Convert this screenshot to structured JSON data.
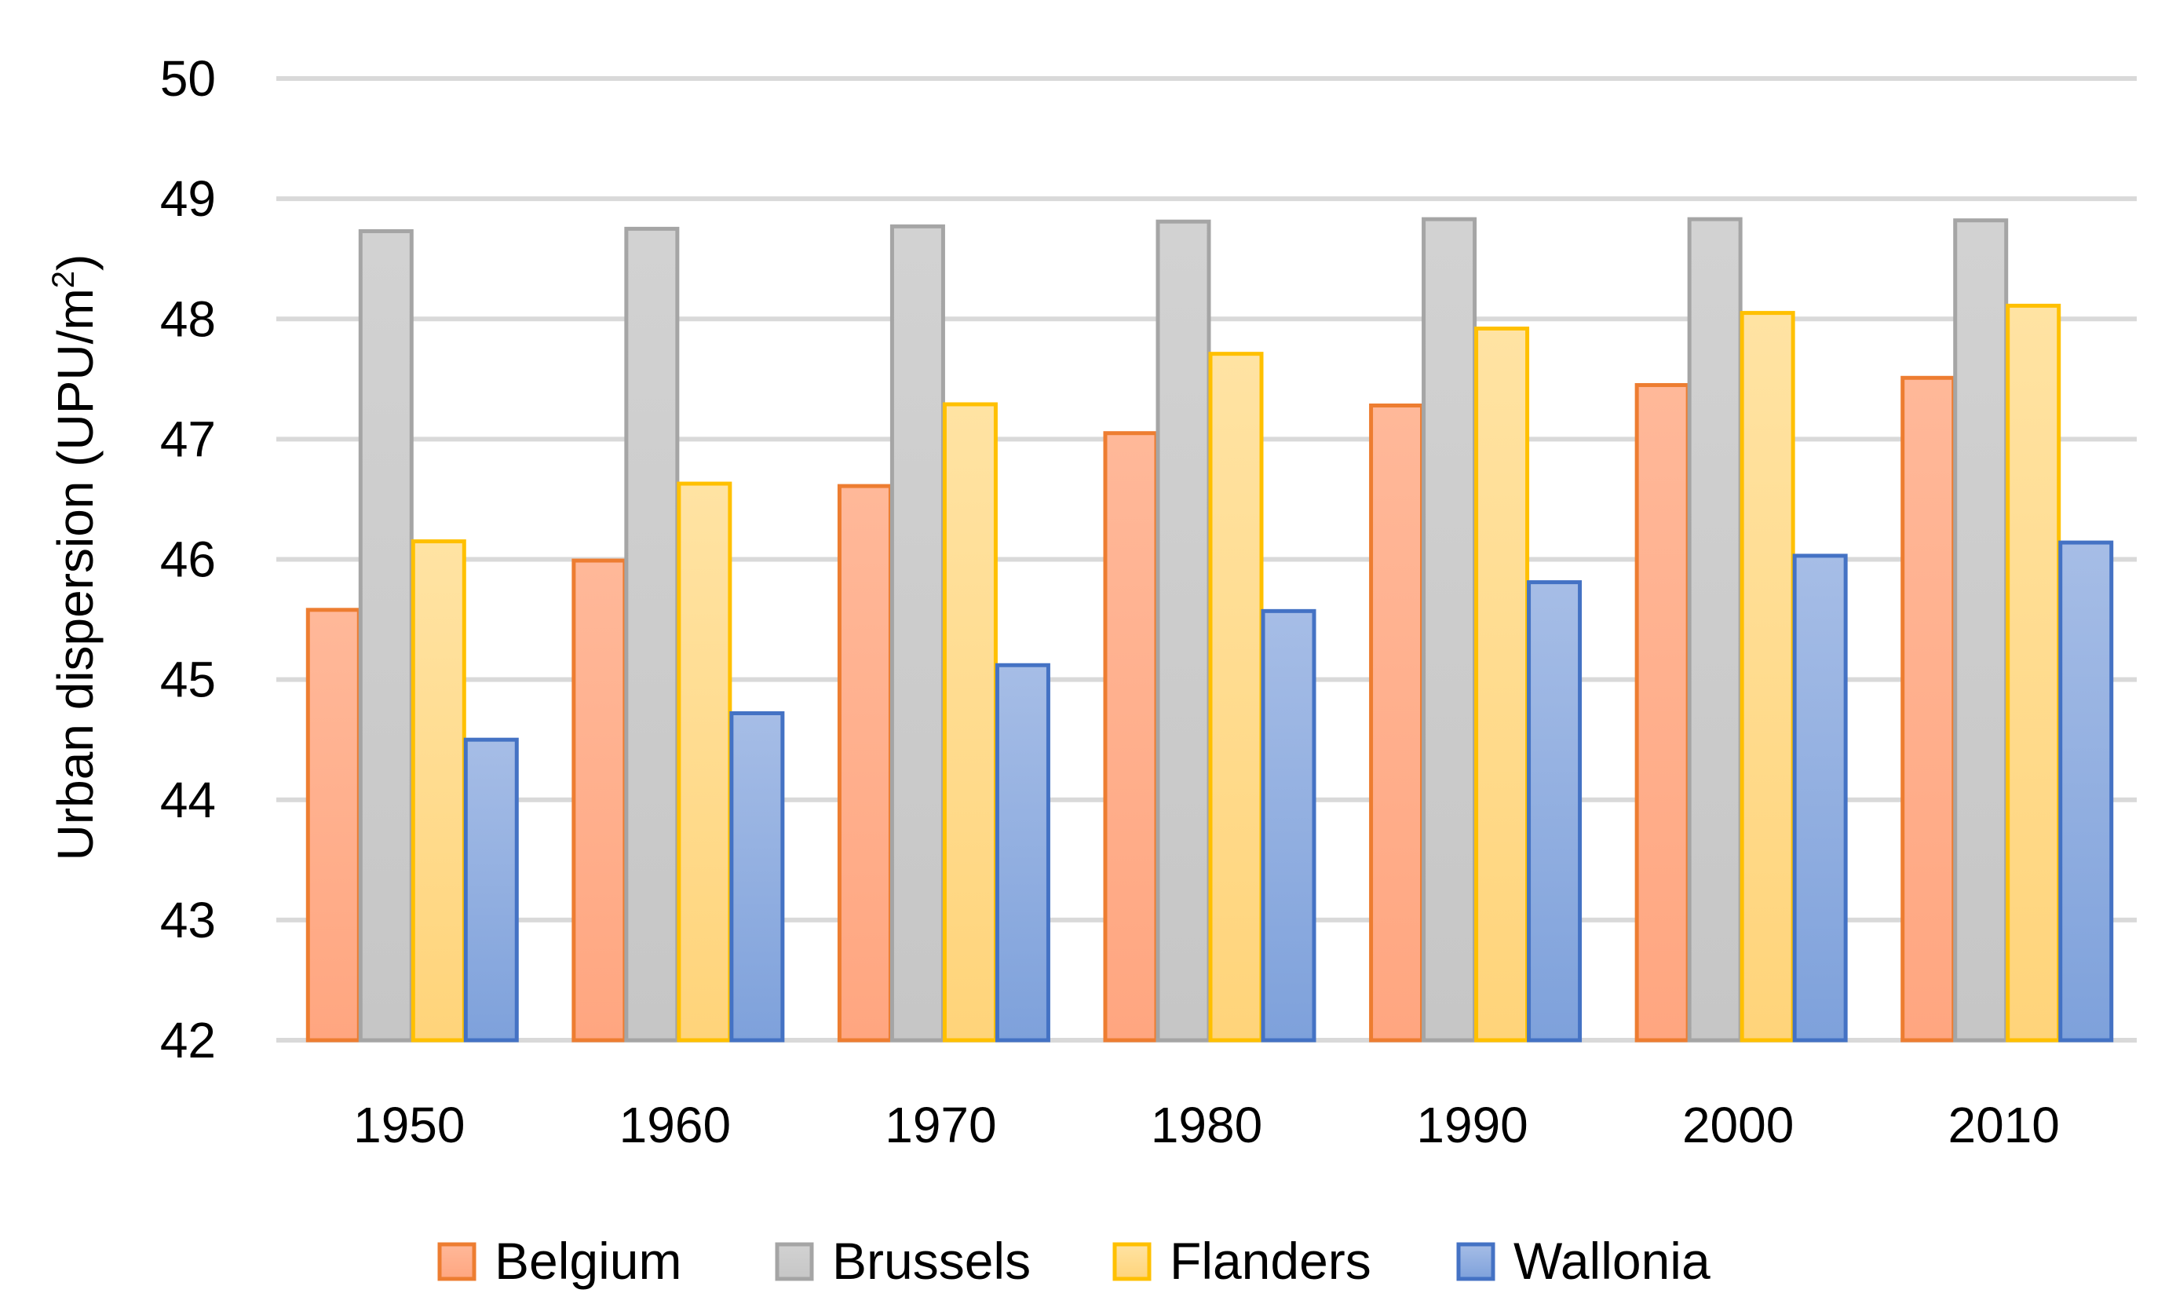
{
  "chart_data": {
    "type": "bar",
    "title": "",
    "xlabel": "",
    "ylabel": "Urban dispersion (UPU/m",
    "ylabel_superscript": "2",
    "ylabel_close": ")",
    "ylim": [
      42,
      50
    ],
    "yticks": [
      "42",
      "43",
      "44",
      "45",
      "46",
      "47",
      "48",
      "49",
      "50"
    ],
    "grid": true,
    "legend_position": "bottom",
    "categories": [
      "1950",
      "1960",
      "1970",
      "1980",
      "1990",
      "2000",
      "2010"
    ],
    "series": [
      {
        "name": "Belgium",
        "color": "#ED7D31",
        "fill_top": "#FFB899",
        "fill_bottom": "#FFA680",
        "values": [
          45.58,
          45.99,
          46.61,
          47.05,
          47.28,
          47.45,
          47.51
        ]
      },
      {
        "name": "Brussels",
        "color": "#A5A5A5",
        "fill_top": "#D2D2D2",
        "fill_bottom": "#C6C6C6",
        "values": [
          48.73,
          48.75,
          48.77,
          48.81,
          48.83,
          48.83,
          48.82
        ]
      },
      {
        "name": "Flanders",
        "color": "#FFC000",
        "fill_top": "#FFE3A3",
        "fill_bottom": "#FFD47A",
        "values": [
          46.15,
          46.63,
          47.29,
          47.71,
          47.92,
          48.05,
          48.11
        ]
      },
      {
        "name": "Wallonia",
        "color": "#4472C4",
        "fill_top": "#A6BDE6",
        "fill_bottom": "#7EA1DB",
        "values": [
          44.5,
          44.72,
          45.12,
          45.57,
          45.81,
          46.03,
          46.14
        ]
      }
    ]
  }
}
